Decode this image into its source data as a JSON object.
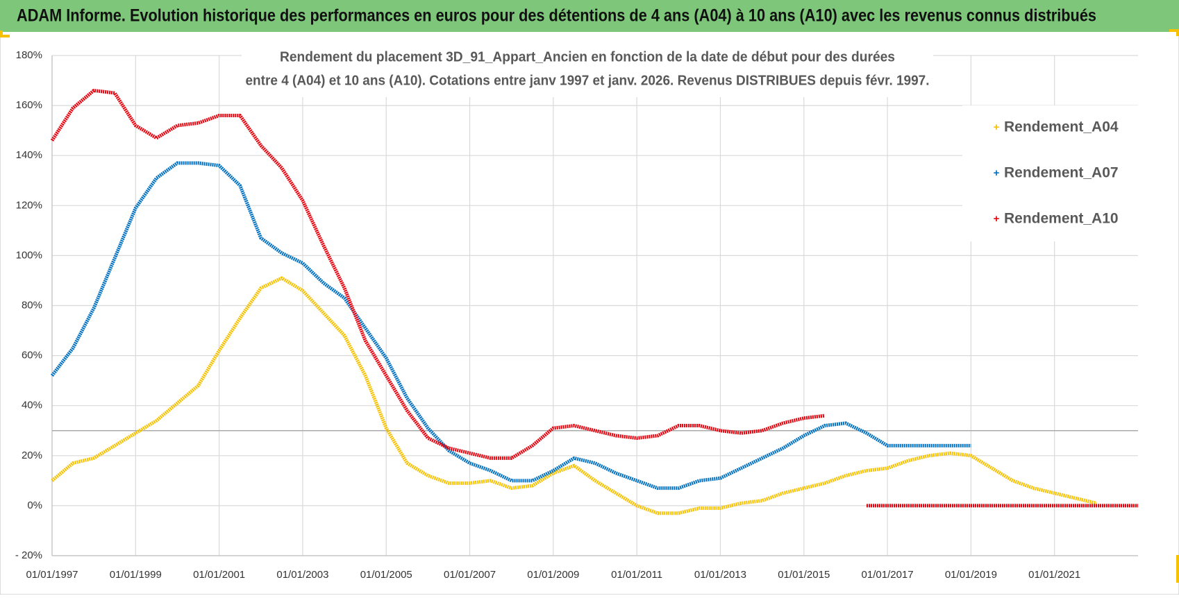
{
  "header": {
    "title": "ADAM Informe. Evolution historique des performances en euros pour des détentions de 4 ans (A04) à 10 ans (A10) avec les revenus connus distribués"
  },
  "chart_data": {
    "type": "line",
    "title": [
      "Rendement du placement 3D_91_Appart_Ancien en fonction de la date de début pour des durées",
      "entre 4 (A04) et 10 ans (A10).  Cotations entre janv 1997 et janv. 2026. Revenus DISTRIBUES depuis févr. 1997."
    ],
    "x": [
      "01/01/1997",
      "01/07/1997",
      "01/01/1998",
      "01/07/1998",
      "01/01/1999",
      "01/07/1999",
      "01/01/2000",
      "01/07/2000",
      "01/01/2001",
      "01/07/2001",
      "01/01/2002",
      "01/07/2002",
      "01/01/2003",
      "01/07/2003",
      "01/01/2004",
      "01/07/2004",
      "01/01/2005",
      "01/07/2005",
      "01/01/2006",
      "01/07/2006",
      "01/01/2007",
      "01/07/2007",
      "01/01/2008",
      "01/07/2008",
      "01/01/2009",
      "01/07/2009",
      "01/01/2010",
      "01/07/2010",
      "01/01/2011",
      "01/07/2011",
      "01/01/2012",
      "01/07/2012",
      "01/01/2013",
      "01/07/2013",
      "01/01/2014",
      "01/07/2014",
      "01/01/2015",
      "01/07/2015",
      "01/01/2016",
      "01/07/2016",
      "01/01/2017",
      "01/07/2017",
      "01/01/2018",
      "01/07/2018",
      "01/01/2019",
      "01/07/2019",
      "01/01/2020",
      "01/07/2020",
      "01/01/2021",
      "01/07/2021",
      "01/01/2022",
      "01/07/2022",
      "01/01/2023"
    ],
    "series": [
      {
        "name": "Rendement_A04",
        "color": "#f5c100",
        "values": [
          10,
          17,
          19,
          24,
          29,
          34,
          41,
          48,
          62,
          75,
          87,
          91,
          86,
          77,
          68,
          52,
          31,
          17,
          12,
          9,
          9,
          10,
          7,
          8,
          13,
          16,
          10,
          5,
          0,
          -3,
          -3,
          -1,
          -1,
          1,
          2,
          5,
          7,
          9,
          12,
          14,
          15,
          18,
          20,
          21,
          20,
          15,
          10,
          7,
          5,
          3,
          1,
          null,
          null
        ]
      },
      {
        "name": "Rendement_A07",
        "color": "#0070c0",
        "values": [
          52,
          63,
          79,
          99,
          119,
          131,
          137,
          137,
          136,
          128,
          107,
          101,
          97,
          89,
          83,
          71,
          59,
          43,
          31,
          22,
          17,
          14,
          10,
          10,
          14,
          19,
          17,
          13,
          10,
          7,
          7,
          10,
          11,
          15,
          19,
          23,
          28,
          32,
          33,
          29,
          24,
          24,
          24,
          24,
          24,
          null,
          null,
          null,
          null,
          null,
          null,
          null,
          null
        ]
      },
      {
        "name": "Rendement_A10",
        "color": "#e8000b",
        "values": [
          146,
          159,
          166,
          165,
          152,
          147,
          152,
          153,
          156,
          156,
          144,
          135,
          122,
          104,
          87,
          66,
          52,
          38,
          27,
          23,
          21,
          19,
          19,
          24,
          31,
          32,
          30,
          28,
          27,
          28,
          32,
          32,
          30,
          29,
          30,
          33,
          35,
          36,
          null,
          0,
          0,
          0,
          0,
          0,
          0,
          0,
          0,
          0,
          0,
          0,
          0,
          0,
          0
        ]
      }
    ],
    "xlim": [
      "01/01/1997",
      "01/01/2023"
    ],
    "xticks": [
      "01/01/1997",
      "01/01/1999",
      "01/01/2001",
      "01/01/2003",
      "01/01/2005",
      "01/01/2007",
      "01/01/2009",
      "01/01/2011",
      "01/01/2013",
      "01/01/2015",
      "01/01/2017",
      "01/01/2019",
      "01/01/2021"
    ],
    "ylim": [
      -20,
      180
    ],
    "yticks": [
      {
        "value": -20,
        "label": "- 20%"
      },
      {
        "value": 0,
        "label": "0%"
      },
      {
        "value": 20,
        "label": "20%"
      },
      {
        "value": 40,
        "label": "40%"
      },
      {
        "value": 60,
        "label": "60%"
      },
      {
        "value": 80,
        "label": "80%"
      },
      {
        "value": 100,
        "label": "100%"
      },
      {
        "value": 120,
        "label": "120%"
      },
      {
        "value": 140,
        "label": "140%"
      },
      {
        "value": 160,
        "label": "160%"
      },
      {
        "value": 180,
        "label": "180%"
      }
    ],
    "hline": 30,
    "grid": true,
    "legend": "right"
  }
}
